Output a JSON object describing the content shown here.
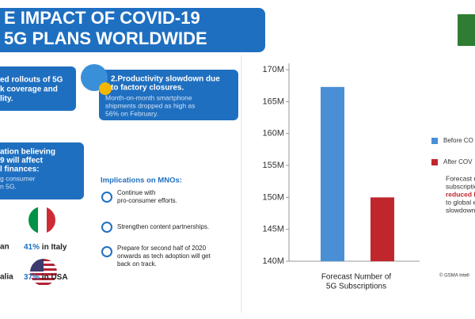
{
  "header": {
    "title": [
      "E IMPACT OF COVID-19",
      "5G PLANS WORLDWIDE"
    ]
  },
  "cards": [
    {
      "lines": [
        "ed rollouts of 5G",
        "k coverage and",
        "lity."
      ]
    },
    {
      "heading": [
        "2.Productivity slowdown due",
        "to factory closures."
      ],
      "lines": [
        "Month-on-month smartphone",
        "shipments dropped as high as",
        "56% on February."
      ]
    },
    {
      "heading": [
        "ation believing",
        "9 will affect",
        "l finances:"
      ],
      "lines": [
        "g consumer",
        "n 5G."
      ]
    }
  ],
  "countries": [
    {
      "left": "an",
      "pct": "41%",
      "name": "in Italy"
    },
    {
      "left": "alia",
      "pct": "37%",
      "name": "in USA"
    }
  ],
  "implications": {
    "title": "Implications on MNOs:",
    "items": [
      [
        "Continue with",
        "pro-consumer efforts."
      ],
      [
        "Strengthen content partnerships."
      ],
      [
        "Prepare for second half of 2020",
        "onwards as tech adoption will get",
        "back on track."
      ]
    ]
  },
  "chart_data": {
    "type": "bar",
    "categories": [
      "Before CO",
      "After COV"
    ],
    "values": [
      167.3,
      150
    ],
    "colors": [
      "#4a8fd6",
      "#c0272d"
    ],
    "xlabel": [
      "Forecast Number of",
      "5G Subscriptions"
    ],
    "ylim": [
      140,
      171
    ],
    "yticks": [
      {
        "value": 140,
        "label": "140M"
      },
      {
        "value": 145,
        "label": "145M"
      },
      {
        "value": 150,
        "label": "150M"
      },
      {
        "value": 155,
        "label": "155M"
      },
      {
        "value": 160,
        "label": "160M"
      },
      {
        "value": 165,
        "label": "165M"
      },
      {
        "value": 170,
        "label": "170M"
      }
    ]
  },
  "note": {
    "lines": [
      "Forecast n",
      "subscriptio"
    ],
    "highlight": "reduced b",
    "rest": [
      "to global e",
      "slowdown."
    ]
  },
  "source": "© GSMA Intell"
}
